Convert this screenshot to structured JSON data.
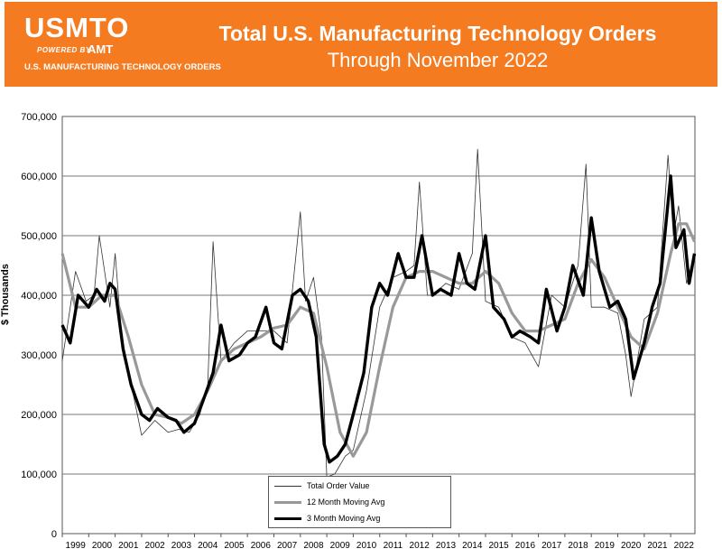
{
  "header": {
    "logo_text": "USMTO",
    "logo_powered": "POWERED BY",
    "logo_brand": "AMT",
    "logo_sub": "U.S. MANUFACTURING TECHNOLOGY ORDERS",
    "title": "Total U.S. Manufacturing Technology Orders",
    "subtitle": "Through November 2022"
  },
  "colors": {
    "banner": "#f47b20",
    "total": "#333333",
    "ma12": "#999999",
    "ma3": "#000000"
  },
  "chart_data": {
    "type": "line",
    "title": "Total U.S. Manufacturing Technology Orders",
    "subtitle": "Through November 2022",
    "xlabel": "",
    "ylabel": "$ Thousands",
    "ylim": [
      0,
      700000
    ],
    "xlim": [
      1999.0,
      2022.917
    ],
    "yticks": [
      0,
      100000,
      200000,
      300000,
      400000,
      500000,
      600000,
      700000
    ],
    "ytick_labels": [
      "0",
      "100,000",
      "200,000",
      "300,000",
      "400,000",
      "500,000",
      "600,000",
      "700,000"
    ],
    "xtick_labels": [
      "1999",
      "2000",
      "2001",
      "2002",
      "2003",
      "2004",
      "2005",
      "2006",
      "2007",
      "2008",
      "2009",
      "2010",
      "2011",
      "2012",
      "2013",
      "2014",
      "2015",
      "2016",
      "2017",
      "2018",
      "2019",
      "2020",
      "2021",
      "2022"
    ],
    "grid": true,
    "legend_position": "bottom-center",
    "series": [
      {
        "name": "Total Order Value",
        "x": [
          1999.0,
          1999.5,
          1999.9,
          2000.2,
          2000.4,
          2000.8,
          2001.0,
          2001.3,
          2001.7,
          2002.0,
          2002.5,
          2003.0,
          2003.4,
          2003.8,
          2004.2,
          2004.5,
          2004.7,
          2005.0,
          2005.5,
          2006.0,
          2006.5,
          2007.0,
          2007.5,
          2008.0,
          2008.2,
          2008.5,
          2008.8,
          2009.0,
          2009.3,
          2009.7,
          2010.0,
          2010.5,
          2011.0,
          2011.5,
          2012.0,
          2012.3,
          2012.5,
          2012.8,
          2013.0,
          2013.5,
          2014.0,
          2014.5,
          2014.7,
          2015.0,
          2015.5,
          2016.0,
          2016.5,
          2017.0,
          2017.5,
          2018.0,
          2018.5,
          2018.8,
          2019.0,
          2019.5,
          2020.0,
          2020.3,
          2020.5,
          2020.7,
          2021.0,
          2021.5,
          2021.9,
          2022.1,
          2022.3,
          2022.6,
          2022.9
        ],
        "y": [
          290000,
          440000,
          390000,
          400000,
          500000,
          380000,
          470000,
          300000,
          230000,
          165000,
          190000,
          170000,
          175000,
          170000,
          200000,
          250000,
          490000,
          290000,
          320000,
          340000,
          340000,
          340000,
          320000,
          540000,
          390000,
          430000,
          330000,
          95000,
          100000,
          130000,
          140000,
          240000,
          380000,
          430000,
          440000,
          450000,
          590000,
          400000,
          400000,
          420000,
          410000,
          470000,
          645000,
          390000,
          380000,
          330000,
          320000,
          280000,
          400000,
          380000,
          450000,
          620000,
          380000,
          380000,
          370000,
          300000,
          230000,
          280000,
          360000,
          380000,
          635000,
          500000,
          550000,
          420000,
          470000
        ]
      },
      {
        "name": "12 Month Moving Avg",
        "x": [
          1999.0,
          1999.5,
          2000.0,
          2000.5,
          2001.0,
          2001.5,
          2002.0,
          2002.5,
          2003.0,
          2003.5,
          2004.0,
          2004.5,
          2005.0,
          2005.5,
          2006.0,
          2006.5,
          2007.0,
          2007.5,
          2008.0,
          2008.5,
          2009.0,
          2009.5,
          2010.0,
          2010.5,
          2011.0,
          2011.5,
          2012.0,
          2012.5,
          2013.0,
          2013.5,
          2014.0,
          2014.5,
          2015.0,
          2015.5,
          2016.0,
          2016.5,
          2017.0,
          2017.5,
          2018.0,
          2018.5,
          2019.0,
          2019.5,
          2020.0,
          2020.5,
          2021.0,
          2021.5,
          2022.0,
          2022.3,
          2022.6,
          2022.9
        ],
        "y": [
          470000,
          380000,
          380000,
          400000,
          400000,
          330000,
          250000,
          200000,
          195000,
          185000,
          200000,
          240000,
          290000,
          310000,
          320000,
          330000,
          345000,
          350000,
          380000,
          370000,
          280000,
          170000,
          130000,
          170000,
          280000,
          380000,
          430000,
          440000,
          440000,
          430000,
          420000,
          420000,
          440000,
          420000,
          370000,
          340000,
          340000,
          350000,
          360000,
          420000,
          460000,
          430000,
          380000,
          330000,
          310000,
          370000,
          470000,
          520000,
          520000,
          490000
        ]
      },
      {
        "name": "3 Month Moving Avg",
        "x": [
          1999.0,
          1999.3,
          1999.6,
          2000.0,
          2000.3,
          2000.6,
          2000.8,
          2001.0,
          2001.3,
          2001.6,
          2002.0,
          2002.3,
          2002.6,
          2003.0,
          2003.3,
          2003.6,
          2004.0,
          2004.3,
          2004.7,
          2005.0,
          2005.3,
          2005.7,
          2006.0,
          2006.3,
          2006.7,
          2007.0,
          2007.3,
          2007.7,
          2008.0,
          2008.3,
          2008.6,
          2008.9,
          2009.1,
          2009.4,
          2009.7,
          2010.0,
          2010.4,
          2010.7,
          2011.0,
          2011.3,
          2011.7,
          2012.0,
          2012.3,
          2012.6,
          2013.0,
          2013.3,
          2013.7,
          2014.0,
          2014.3,
          2014.6,
          2015.0,
          2015.3,
          2015.7,
          2016.0,
          2016.3,
          2016.7,
          2017.0,
          2017.3,
          2017.7,
          2018.0,
          2018.3,
          2018.7,
          2019.0,
          2019.3,
          2019.7,
          2020.0,
          2020.3,
          2020.6,
          2021.0,
          2021.3,
          2021.6,
          2022.0,
          2022.2,
          2022.5,
          2022.7,
          2022.9
        ],
        "y": [
          350000,
          320000,
          400000,
          380000,
          410000,
          390000,
          420000,
          410000,
          310000,
          250000,
          200000,
          190000,
          210000,
          195000,
          190000,
          170000,
          185000,
          220000,
          270000,
          350000,
          290000,
          300000,
          320000,
          330000,
          380000,
          320000,
          310000,
          400000,
          410000,
          390000,
          330000,
          150000,
          120000,
          130000,
          150000,
          200000,
          270000,
          380000,
          420000,
          400000,
          470000,
          430000,
          430000,
          500000,
          400000,
          410000,
          400000,
          470000,
          420000,
          410000,
          500000,
          380000,
          360000,
          330000,
          340000,
          330000,
          320000,
          410000,
          340000,
          380000,
          450000,
          400000,
          530000,
          440000,
          380000,
          390000,
          360000,
          260000,
          320000,
          380000,
          420000,
          600000,
          480000,
          510000,
          420000,
          470000
        ]
      }
    ]
  }
}
